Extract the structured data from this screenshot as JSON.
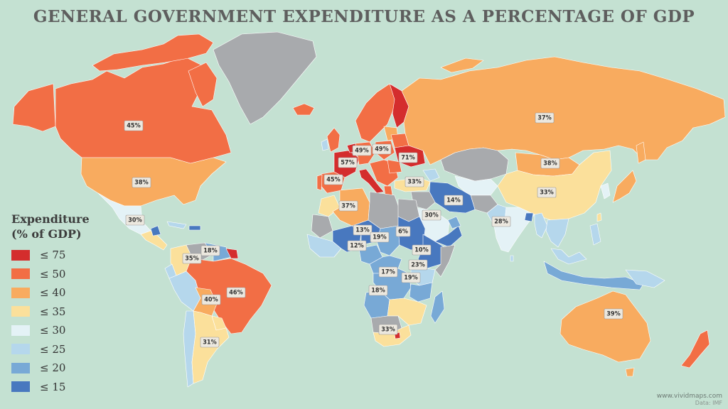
{
  "title": "GENERAL GOVERNMENT EXPENDITURE AS A PERCENTAGE OF GDP",
  "legend": {
    "title_line1": "Expenditure",
    "title_line2": "(% of GDP)",
    "items": [
      {
        "label": "≤ 75",
        "color": "#d42d2d"
      },
      {
        "label": "≤ 50",
        "color": "#f26e45"
      },
      {
        "label": "≤ 40",
        "color": "#f8ab5f"
      },
      {
        "label": "≤ 35",
        "color": "#fbe09b"
      },
      {
        "label": "≤ 30",
        "color": "#e4f2f6"
      },
      {
        "label": "≤ 25",
        "color": "#b5d7ec"
      },
      {
        "label": "≤ 20",
        "color": "#78a9d6"
      },
      {
        "label": "≤ 15",
        "color": "#4878bf"
      }
    ],
    "no_data_color": "#a8aaad"
  },
  "labels": [
    {
      "region": "Canada",
      "value": "45%"
    },
    {
      "region": "United States",
      "value": "38%"
    },
    {
      "region": "Mexico",
      "value": "30%"
    },
    {
      "region": "Guyana",
      "value": "18%"
    },
    {
      "region": "Colombia",
      "value": "35%"
    },
    {
      "region": "Brazil",
      "value": "46%"
    },
    {
      "region": "Bolivia",
      "value": "40%"
    },
    {
      "region": "Argentina",
      "value": "31%"
    },
    {
      "region": "France",
      "value": "57%"
    },
    {
      "region": "Germany",
      "value": "49%"
    },
    {
      "region": "Poland",
      "value": "49%"
    },
    {
      "region": "Ukraine",
      "value": "71%"
    },
    {
      "region": "Spain",
      "value": "45%"
    },
    {
      "region": "Algeria",
      "value": "37%"
    },
    {
      "region": "Turkey",
      "value": "33%"
    },
    {
      "region": "Russia",
      "value": "37%"
    },
    {
      "region": "Mongolia",
      "value": "38%"
    },
    {
      "region": "China",
      "value": "33%"
    },
    {
      "region": "Iran",
      "value": "14%"
    },
    {
      "region": "Saudi Arabia",
      "value": "30%"
    },
    {
      "region": "India",
      "value": "28%"
    },
    {
      "region": "Niger",
      "value": "13%"
    },
    {
      "region": "Mali",
      "value": "12%"
    },
    {
      "region": "Chad",
      "value": "19%"
    },
    {
      "region": "Sudan",
      "value": "6%"
    },
    {
      "region": "Ethiopia",
      "value": "10%"
    },
    {
      "region": "Kenya",
      "value": "23%"
    },
    {
      "region": "DR Congo",
      "value": "17%"
    },
    {
      "region": "Tanzania",
      "value": "19%"
    },
    {
      "region": "Angola",
      "value": "18%"
    },
    {
      "region": "South Africa",
      "value": "33%"
    },
    {
      "region": "Australia",
      "value": "39%"
    }
  ],
  "credit": {
    "url": "www.vividmaps.com",
    "data": "Data: IMF"
  }
}
